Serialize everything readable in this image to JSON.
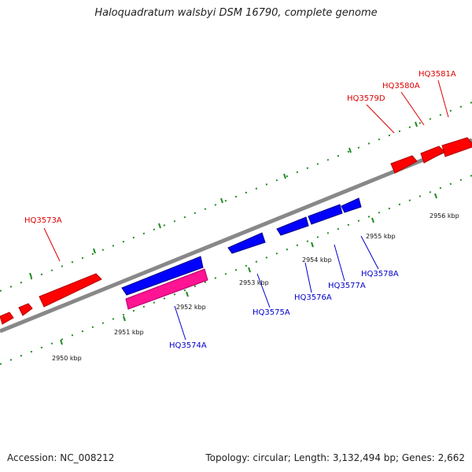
{
  "title": "Haloquadratum walsbyi DSM 16790, complete genome",
  "accession_label": "Accession: NC_008212",
  "summary_label": "Topology: circular; Length: 3,132,494 bp; Genes: 2,662",
  "colors": {
    "forward_gene": "#ff0000",
    "reverse_gene": "#0000ff",
    "reverse_gene_alt": "#ff1493",
    "forward_label": "#dd0000",
    "reverse_label": "#0000cc",
    "backbone": "#888888",
    "ticks": "#228b22"
  },
  "tick_labels": [
    "2950 kbp",
    "2951 kbp",
    "2952 kbp",
    "2953 kbp",
    "2954 kbp",
    "2955 kbp",
    "2956 kbp"
  ],
  "forward_genes": [
    "HQ3573A",
    "HQ3579D",
    "HQ3580A",
    "HQ3581A"
  ],
  "reverse_genes": [
    "HQ3574A",
    "HQ3575A",
    "HQ3576A",
    "HQ3577A",
    "HQ3578A"
  ]
}
